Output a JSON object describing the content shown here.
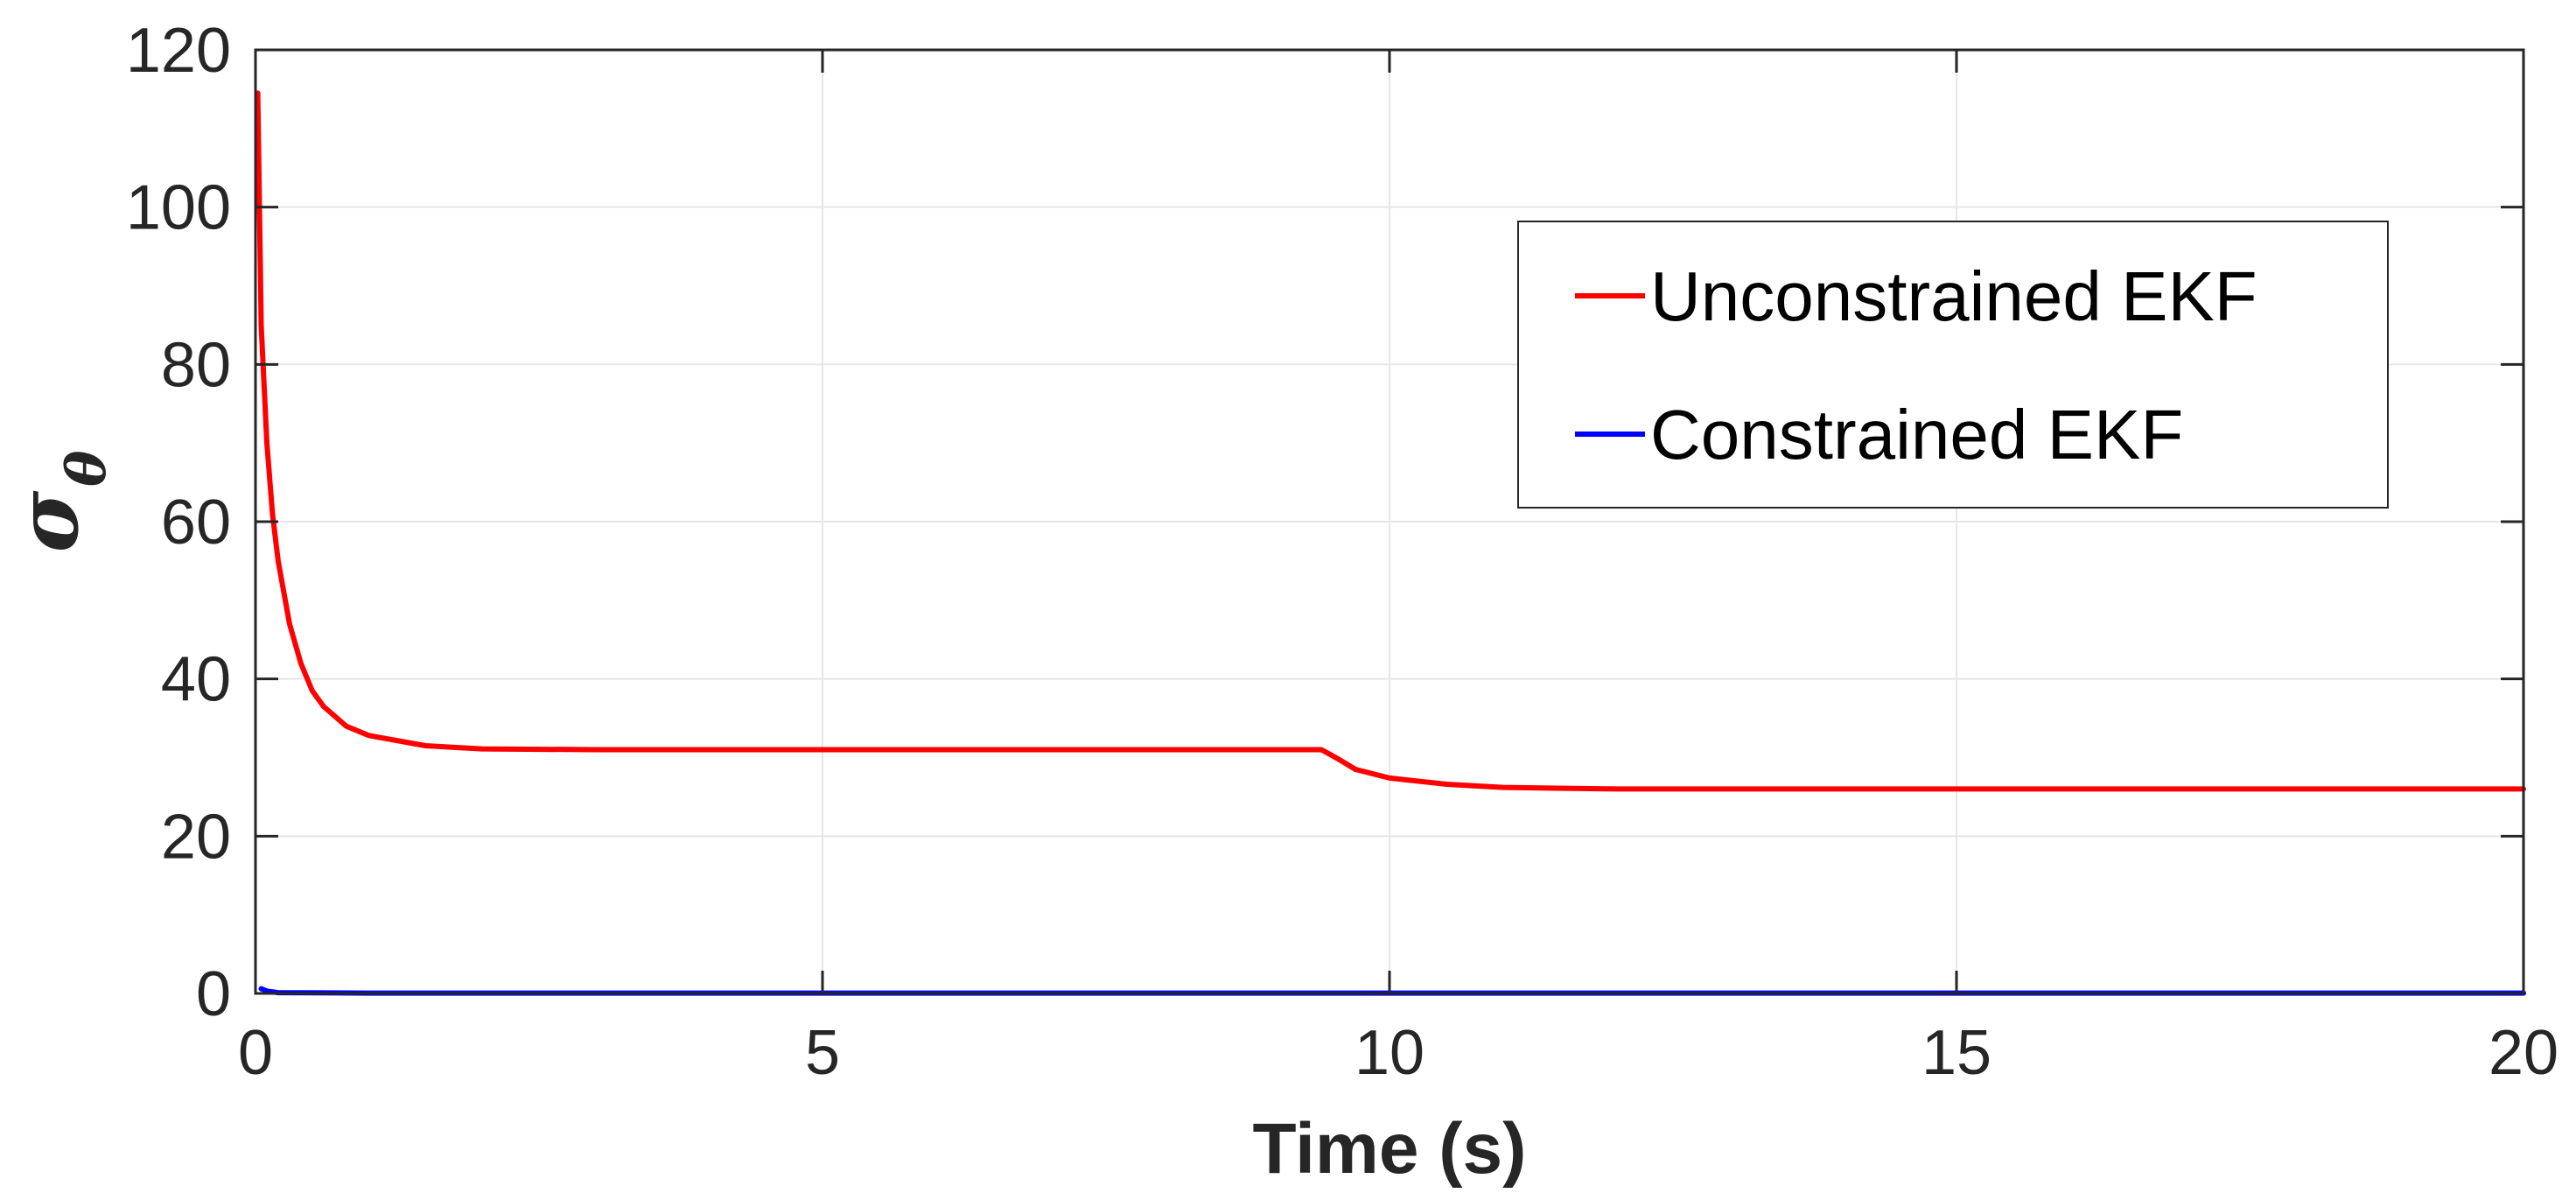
{
  "chart_data": {
    "type": "line",
    "title": "",
    "xlabel": "Time (s)",
    "ylabel": "σ",
    "ylabel_subscript": "θ",
    "xlim": [
      0,
      20
    ],
    "ylim": [
      0,
      120
    ],
    "xticks": [
      0,
      5,
      10,
      15,
      20
    ],
    "yticks": [
      0,
      20,
      40,
      60,
      80,
      100,
      120
    ],
    "grid": true,
    "legend_position": "top-right",
    "series": [
      {
        "name": "Unconstrained EKF",
        "color": "#ff0000",
        "x": [
          0.02,
          0.05,
          0.1,
          0.15,
          0.2,
          0.3,
          0.4,
          0.5,
          0.6,
          0.8,
          1.0,
          1.5,
          2.0,
          3.0,
          5.0,
          7.0,
          8.5,
          9.4,
          9.55,
          9.7,
          10.0,
          10.5,
          11.0,
          12.0,
          13.0,
          15.0,
          17.0,
          20.0
        ],
        "y": [
          114.5,
          85,
          70,
          61,
          55,
          47,
          42,
          38.5,
          36.5,
          34,
          32.8,
          31.5,
          31.1,
          31,
          31,
          31,
          31,
          31,
          29.8,
          28.5,
          27.4,
          26.6,
          26.2,
          26,
          26,
          26,
          26,
          26
        ]
      },
      {
        "name": "Constrained EKF",
        "color": "#0000ff",
        "x": [
          0.05,
          0.1,
          0.2,
          1,
          5,
          10,
          15,
          20
        ],
        "y": [
          0.6,
          0.3,
          0.1,
          0.05,
          0.05,
          0.05,
          0.05,
          0.05
        ]
      }
    ]
  }
}
